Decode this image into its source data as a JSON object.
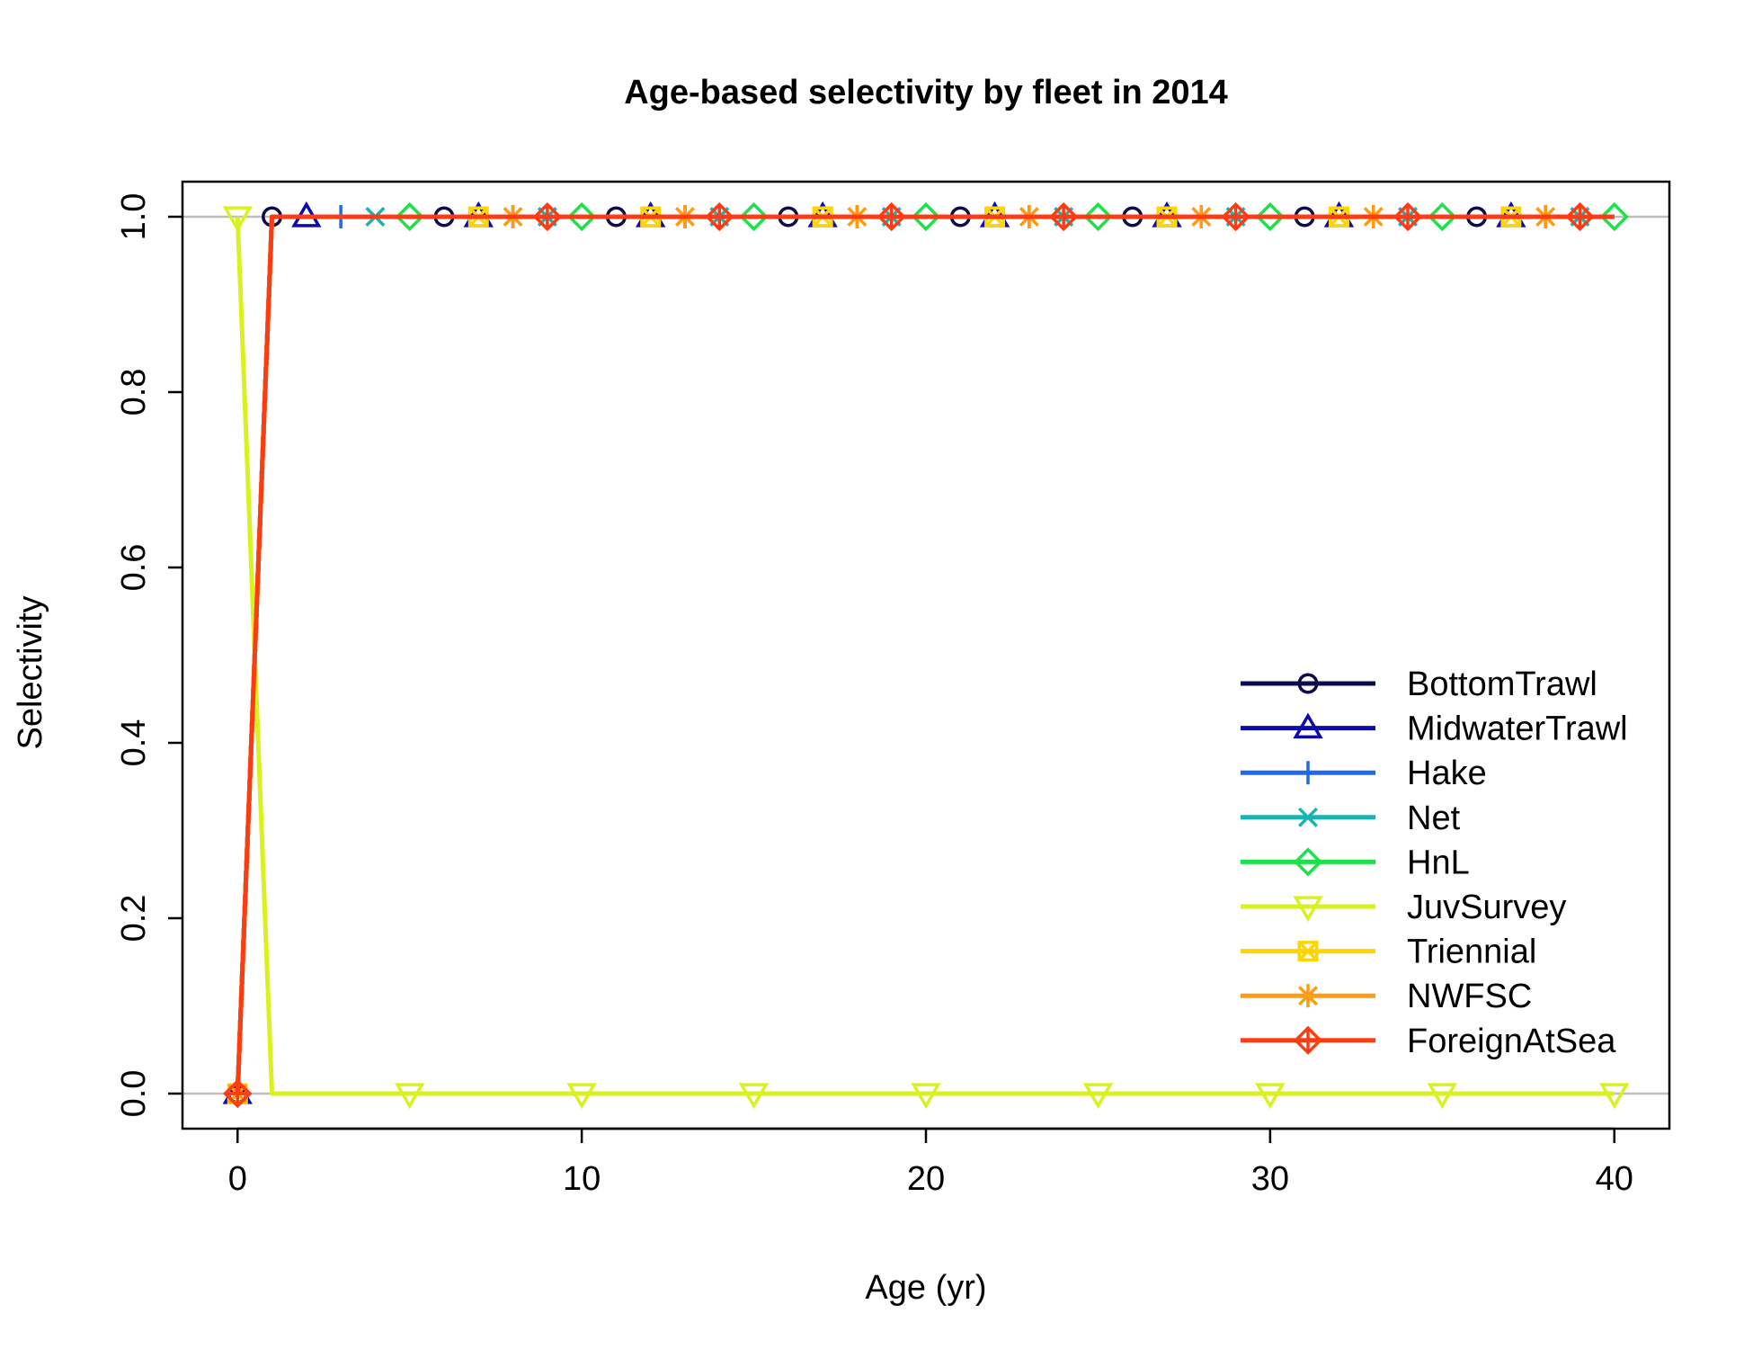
{
  "chart_data": {
    "type": "line",
    "title": "Age-based selectivity by fleet in 2014",
    "xlabel": "Age (yr)",
    "ylabel": "Selectivity",
    "xlim": [
      -1.6,
      41.6
    ],
    "ylim": [
      -0.04,
      1.04
    ],
    "xticks": [
      0,
      10,
      20,
      30,
      40
    ],
    "yticks": [
      0.0,
      0.2,
      0.4,
      0.6,
      0.8,
      1.0
    ],
    "xtick_labels": [
      "0",
      "10",
      "20",
      "30",
      "40"
    ],
    "ytick_labels": [
      "0.0",
      "0.2",
      "0.4",
      "0.6",
      "0.8",
      "1.0"
    ],
    "reference_lines": [
      0,
      1
    ],
    "legend_position": "bottom-right",
    "x": [
      0,
      1,
      2,
      3,
      4,
      5,
      6,
      7,
      8,
      9,
      10,
      11,
      12,
      13,
      14,
      15,
      16,
      17,
      18,
      19,
      20,
      21,
      22,
      23,
      24,
      25,
      26,
      27,
      28,
      29,
      30,
      31,
      32,
      33,
      34,
      35,
      36,
      37,
      38,
      39,
      40
    ],
    "series": [
      {
        "name": "BottomTrawl",
        "color": "#0b0b4d",
        "marker": "circle",
        "values": [
          0,
          1,
          1,
          1,
          1,
          1,
          1,
          1,
          1,
          1,
          1,
          1,
          1,
          1,
          1,
          1,
          1,
          1,
          1,
          1,
          1,
          1,
          1,
          1,
          1,
          1,
          1,
          1,
          1,
          1,
          1,
          1,
          1,
          1,
          1,
          1,
          1,
          1,
          1,
          1,
          1
        ]
      },
      {
        "name": "MidwaterTrawl",
        "color": "#0a0ab0",
        "marker": "triangle",
        "values": [
          0,
          1,
          1,
          1,
          1,
          1,
          1,
          1,
          1,
          1,
          1,
          1,
          1,
          1,
          1,
          1,
          1,
          1,
          1,
          1,
          1,
          1,
          1,
          1,
          1,
          1,
          1,
          1,
          1,
          1,
          1,
          1,
          1,
          1,
          1,
          1,
          1,
          1,
          1,
          1,
          1
        ]
      },
      {
        "name": "Hake",
        "color": "#1f6be6",
        "marker": "plus",
        "values": [
          0,
          1,
          1,
          1,
          1,
          1,
          1,
          1,
          1,
          1,
          1,
          1,
          1,
          1,
          1,
          1,
          1,
          1,
          1,
          1,
          1,
          1,
          1,
          1,
          1,
          1,
          1,
          1,
          1,
          1,
          1,
          1,
          1,
          1,
          1,
          1,
          1,
          1,
          1,
          1,
          1
        ]
      },
      {
        "name": "Net",
        "color": "#1ab2b2",
        "marker": "x",
        "values": [
          0,
          1,
          1,
          1,
          1,
          1,
          1,
          1,
          1,
          1,
          1,
          1,
          1,
          1,
          1,
          1,
          1,
          1,
          1,
          1,
          1,
          1,
          1,
          1,
          1,
          1,
          1,
          1,
          1,
          1,
          1,
          1,
          1,
          1,
          1,
          1,
          1,
          1,
          1,
          1,
          1
        ]
      },
      {
        "name": "HnL",
        "color": "#1ee14a",
        "marker": "diamond",
        "values": [
          0,
          1,
          1,
          1,
          1,
          1,
          1,
          1,
          1,
          1,
          1,
          1,
          1,
          1,
          1,
          1,
          1,
          1,
          1,
          1,
          1,
          1,
          1,
          1,
          1,
          1,
          1,
          1,
          1,
          1,
          1,
          1,
          1,
          1,
          1,
          1,
          1,
          1,
          1,
          1,
          1
        ]
      },
      {
        "name": "JuvSurvey",
        "color": "#d9f21f",
        "marker": "triangle-down",
        "values": [
          1,
          0,
          0,
          0,
          0,
          0,
          0,
          0,
          0,
          0,
          0,
          0,
          0,
          0,
          0,
          0,
          0,
          0,
          0,
          0,
          0,
          0,
          0,
          0,
          0,
          0,
          0,
          0,
          0,
          0,
          0,
          0,
          0,
          0,
          0,
          0,
          0,
          0,
          0,
          0,
          0
        ]
      },
      {
        "name": "Triennial",
        "color": "#ffd500",
        "marker": "square",
        "values": [
          0,
          1,
          1,
          1,
          1,
          1,
          1,
          1,
          1,
          1,
          1,
          1,
          1,
          1,
          1,
          1,
          1,
          1,
          1,
          1,
          1,
          1,
          1,
          1,
          1,
          1,
          1,
          1,
          1,
          1,
          1,
          1,
          1,
          1,
          1,
          1,
          1,
          1,
          1,
          1,
          1
        ]
      },
      {
        "name": "NWFSC",
        "color": "#ff9b0f",
        "marker": "asterisk",
        "values": [
          0,
          1,
          1,
          1,
          1,
          1,
          1,
          1,
          1,
          1,
          1,
          1,
          1,
          1,
          1,
          1,
          1,
          1,
          1,
          1,
          1,
          1,
          1,
          1,
          1,
          1,
          1,
          1,
          1,
          1,
          1,
          1,
          1,
          1,
          1,
          1,
          1,
          1,
          1,
          1,
          1
        ]
      },
      {
        "name": "ForeignAtSea",
        "color": "#ff3b14",
        "marker": "diamond-plus",
        "values": [
          0,
          1,
          1,
          1,
          1,
          1,
          1,
          1,
          1,
          1,
          1,
          1,
          1,
          1,
          1,
          1,
          1,
          1,
          1,
          1,
          1,
          1,
          1,
          1,
          1,
          1,
          1,
          1,
          1,
          1,
          1,
          1,
          1,
          1,
          1,
          1,
          1,
          1,
          1,
          1,
          1
        ]
      }
    ]
  }
}
